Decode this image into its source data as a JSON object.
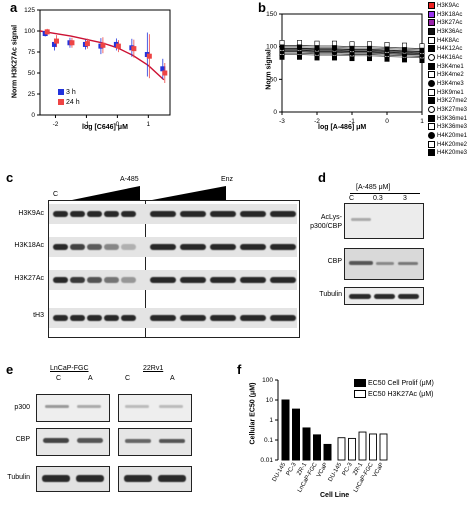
{
  "panels": {
    "a": {
      "label": "a",
      "ylabel": "Norm H3K27Ac signal",
      "xlabel": "log [C646] μM",
      "legend": [
        {
          "name": "3 h",
          "color": "#2233dd"
        },
        {
          "name": "24 h",
          "color": "#ee4444"
        }
      ]
    },
    "b": {
      "label": "b",
      "ylabel": "Norm signal",
      "xlabel": "log [A-486] μM",
      "legend": [
        "H3K9Ac",
        "H3K18Ac",
        "H3K27Ac",
        "H3K36Ac",
        "H4K8Ac",
        "H4K12Ac",
        "H4K16Ac",
        "H3K4me1",
        "H3K4me2",
        "H3K4me3",
        "H3K9me1",
        "H3K27me2",
        "H3K27me3",
        "H3K36me1",
        "H3K36me3",
        "H4K20me1",
        "H4K20me2",
        "H4K20me3"
      ]
    },
    "c": {
      "label": "c",
      "control": "C",
      "groups": [
        "A-485",
        "Enz"
      ],
      "rows": [
        "H3K9Ac",
        "H3K18Ac",
        "H3K27Ac",
        "tH3"
      ]
    },
    "d": {
      "label": "d",
      "header": "[A-485 μM]",
      "lanes": [
        "C",
        "0.3",
        "3"
      ],
      "rows": [
        "AcLys-\np300/CBP",
        "CBP",
        "Tubulin"
      ]
    },
    "e": {
      "label": "e",
      "groups": [
        "LnCaP-FGC",
        "22Rv1"
      ],
      "lanes": [
        "C",
        "A",
        "C",
        "A"
      ],
      "rows": [
        "p300",
        "CBP",
        "Tubulin"
      ]
    },
    "f": {
      "label": "f",
      "ylabel": "Cellular EC50 (μM)",
      "xlabel": "Cell Line",
      "legend": [
        "EC50 Cell Prolif (μM)",
        "EC50 H3K27Ac (μM)"
      ]
    }
  },
  "chart_data": [
    {
      "type": "scatter",
      "title": "",
      "xlabel": "log [C646] μM",
      "ylabel": "Norm H3K27Ac signal",
      "xlim": [
        -2.5,
        1.7
      ],
      "ylim": [
        0,
        125
      ],
      "xticks": [
        -2,
        -1,
        0,
        1
      ],
      "yticks": [
        0,
        25,
        50,
        75,
        100,
        125
      ],
      "series": [
        {
          "name": "3 h",
          "color": "#2233dd",
          "x": [
            -2.3,
            -2,
            -1.5,
            -1,
            -0.5,
            0,
            0.5,
            1,
            1.5
          ],
          "y": [
            97,
            84,
            86,
            84,
            82,
            84,
            80,
            72,
            55
          ]
        },
        {
          "name": "24 h",
          "color": "#ee4444",
          "x": [
            -2.3,
            -2,
            -1.5,
            -1,
            -0.5,
            0,
            0.5,
            1,
            1.5
          ],
          "y": [
            99,
            88,
            86,
            85,
            83,
            82,
            79,
            70,
            50
          ]
        }
      ],
      "fit_curve": {
        "x": [
          -2.5,
          -2,
          -1.5,
          -1,
          -0.5,
          0,
          0.5,
          1,
          1.5
        ],
        "y": [
          100,
          97,
          94,
          90,
          86,
          80,
          71,
          59,
          42
        ]
      }
    },
    {
      "type": "scatter",
      "title": "",
      "xlabel": "log [A-486] μM",
      "ylabel": "Norm signal",
      "xlim": [
        -3,
        1
      ],
      "ylim": [
        0,
        150
      ],
      "xticks": [
        -3,
        -2,
        -1,
        0,
        1
      ],
      "yticks": [
        0,
        50,
        100,
        150
      ],
      "x": [
        -3,
        -2.5,
        -2,
        -1.5,
        -1,
        -0.5,
        0,
        0.5,
        1
      ],
      "band_center": [
        95,
        95,
        94,
        94,
        93,
        93,
        92,
        91,
        90
      ]
    },
    {
      "type": "bar",
      "title": "",
      "xlabel": "Cell Line",
      "ylabel": "Cellular EC50 (μM)",
      "yscale": "log",
      "ylim": [
        0.01,
        100
      ],
      "yticks": [
        0.01,
        0.1,
        1,
        10,
        100
      ],
      "series": [
        {
          "name": "EC50 Cell Prolif (μM)",
          "fill": "#000000",
          "categories": [
            "DU-145",
            "PC-3",
            "ZR-1",
            "LnCaP-FGC",
            "VCaP"
          ],
          "values": [
            10,
            3.5,
            0.4,
            0.18,
            0.06
          ]
        },
        {
          "name": "EC50 H3K27Ac (μM)",
          "fill": "#ffffff",
          "categories": [
            "DU-145",
            "PC-3",
            "ZR-1",
            "LnCaP-FGC",
            "VCaP"
          ],
          "values": [
            0.13,
            0.12,
            0.25,
            0.2,
            0.2
          ]
        }
      ]
    }
  ]
}
